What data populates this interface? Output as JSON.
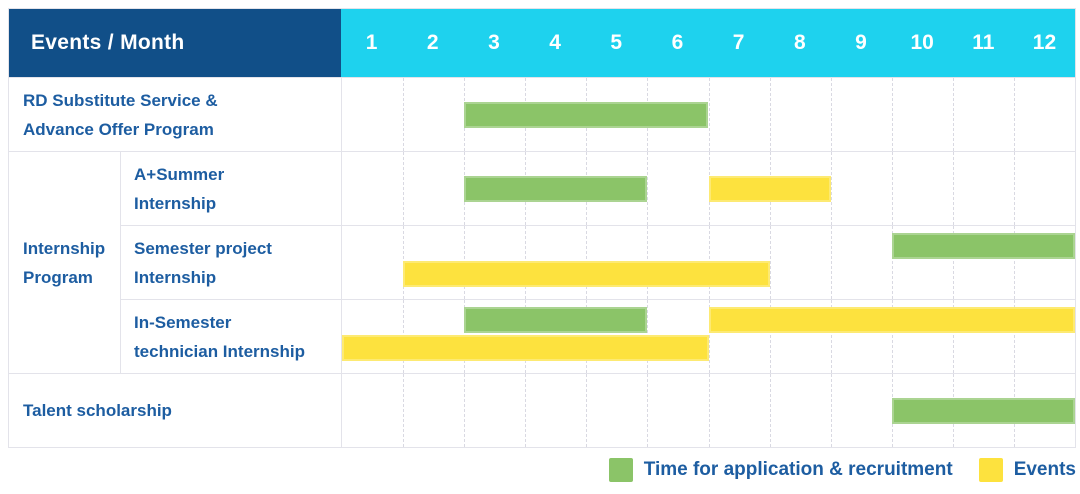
{
  "header": {
    "events_month_label": "Events / Month",
    "months": [
      "1",
      "2",
      "3",
      "4",
      "5",
      "6",
      "7",
      "8",
      "9",
      "10",
      "11",
      "12"
    ]
  },
  "colors": {
    "header_bg": "#114f88",
    "months_bg": "#1ed2ee",
    "label_text": "#1d5da1",
    "bar_green": "#8bc468",
    "bar_yellow": "#fde23e",
    "grid": "#e3e3ea",
    "gridline_dashed": "#d9d9e2"
  },
  "legend": [
    {
      "label": "Time for application & recruitment",
      "color_key": "green"
    },
    {
      "label": "Events",
      "color_key": "yellow"
    }
  ],
  "chart_data": {
    "type": "gantt",
    "unit": "month",
    "x_range": [
      1,
      13
    ],
    "x_ticks": [
      1,
      2,
      3,
      4,
      5,
      6,
      7,
      8,
      9,
      10,
      11,
      12
    ],
    "legend_meaning": {
      "green": "Time for application & recruitment",
      "yellow": "Events"
    },
    "group_labels": [
      {
        "name": "Internship Program",
        "lines": [
          "Internship",
          "Program"
        ]
      }
    ],
    "rows": [
      {
        "group": null,
        "label_lines": [
          "RD Substitute Service &",
          "Advance Offer Program"
        ],
        "levels": 1,
        "bars": [
          {
            "color": "green",
            "start": 3,
            "end": 7,
            "level": 0
          }
        ]
      },
      {
        "group": "Internship Program",
        "label_lines": [
          "A+Summer",
          "Internship"
        ],
        "levels": 1,
        "bars": [
          {
            "color": "green",
            "start": 3,
            "end": 6,
            "level": 0
          },
          {
            "color": "yellow",
            "start": 7,
            "end": 9,
            "level": 0
          }
        ]
      },
      {
        "group": "Internship Program",
        "label_lines": [
          "Semester project",
          "Internship"
        ],
        "levels": 2,
        "bars": [
          {
            "color": "green",
            "start": 10,
            "end": 13,
            "level": 0
          },
          {
            "color": "yellow",
            "start": 2,
            "end": 8,
            "level": 1
          }
        ]
      },
      {
        "group": "Internship Program",
        "label_lines": [
          "In-Semester",
          "technician Internship"
        ],
        "levels": 2,
        "bars": [
          {
            "color": "green",
            "start": 3,
            "end": 6,
            "level": 0
          },
          {
            "color": "yellow",
            "start": 7,
            "end": 13,
            "level": 0
          },
          {
            "color": "yellow",
            "start": 1,
            "end": 7,
            "level": 1
          }
        ]
      },
      {
        "group": null,
        "label_lines": [
          "Talent scholarship"
        ],
        "levels": 1,
        "bars": [
          {
            "color": "green",
            "start": 10,
            "end": 13,
            "level": 0
          }
        ]
      }
    ]
  }
}
